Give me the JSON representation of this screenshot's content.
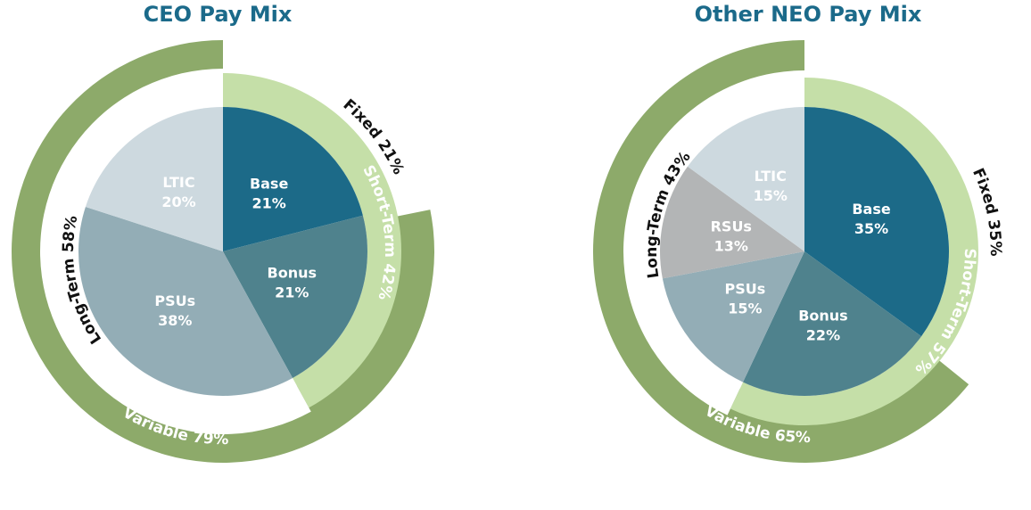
{
  "chart_data": [
    {
      "type": "pie",
      "title": "CEO Pay Mix",
      "slices": [
        {
          "name": "Base",
          "value": 21,
          "label": "21%",
          "color": "#1c6a88"
        },
        {
          "name": "Bonus",
          "value": 21,
          "label": "21%",
          "color": "#4f828d"
        },
        {
          "name": "PSUs",
          "value": 38,
          "label": "38%",
          "color": "#93adb6"
        },
        {
          "name": "LTIC",
          "value": 20,
          "label": "20%",
          "color": "#cdd9df"
        }
      ],
      "rings": [
        {
          "label": "Fixed 21%",
          "value": 21,
          "color": "#ffffff"
        },
        {
          "label": "Short-Term 42%",
          "value": 42,
          "color": "#c5dfa8"
        },
        {
          "label": "Long-Term 58%",
          "value": 58,
          "color": "#ffffff"
        },
        {
          "label": "Variable 79%",
          "value": 79,
          "color": "#8daa6a"
        }
      ]
    },
    {
      "type": "pie",
      "title": "Other NEO Pay Mix",
      "slices": [
        {
          "name": "Base",
          "value": 35,
          "label": "35%",
          "color": "#1c6a88"
        },
        {
          "name": "Bonus",
          "value": 22,
          "label": "22%",
          "color": "#4f828d"
        },
        {
          "name": "PSUs",
          "value": 15,
          "label": "15%",
          "color": "#93adb6"
        },
        {
          "name": "RSUs",
          "value": 13,
          "label": "13%",
          "color": "#b3b5b6"
        },
        {
          "name": "LTIC",
          "value": 15,
          "label": "15%",
          "color": "#cdd9df"
        }
      ],
      "rings": [
        {
          "label": "Fixed 35%",
          "value": 35,
          "color": "#ffffff"
        },
        {
          "label": "Short-Term 57%",
          "value": 57,
          "color": "#c5dfa8"
        },
        {
          "label": "Long-Term 43%",
          "value": 43,
          "color": "#ffffff"
        },
        {
          "label": "Variable 65%",
          "value": 65,
          "color": "#8daa6a"
        }
      ]
    }
  ]
}
